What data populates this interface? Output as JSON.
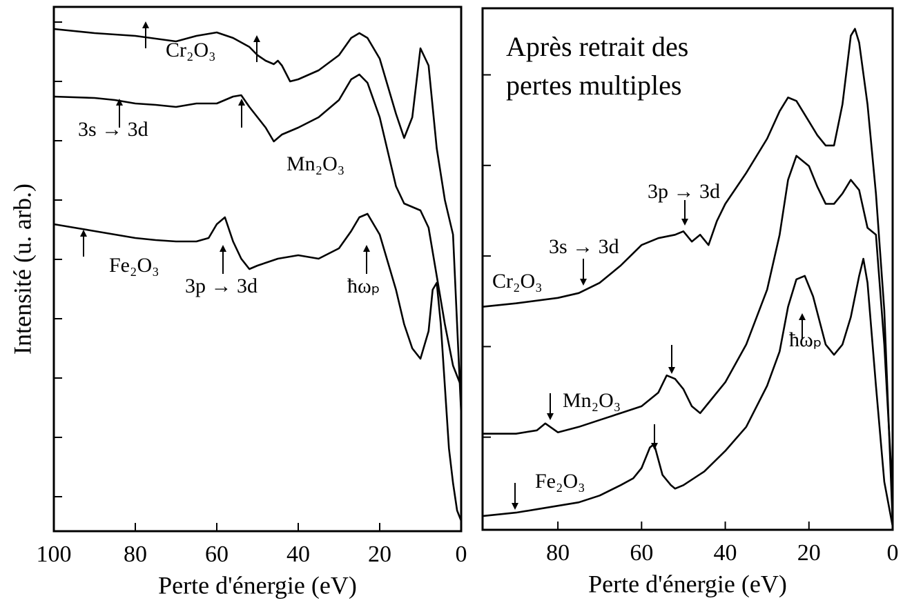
{
  "chart_data": [
    {
      "type": "line",
      "xlabel": "Perte d'énergie (eV)",
      "ylabel": "Intensité (u. arb.)",
      "xlim": [
        100,
        0
      ],
      "xticks": [
        100,
        80,
        60,
        40,
        20,
        0
      ],
      "ylim": [
        0,
        76
      ],
      "yticks": [
        5,
        13.6,
        22.2,
        30.8,
        39.4,
        48,
        56.6,
        65.2,
        73.8
      ],
      "annotations": [
        "3s → 3d",
        "3p → 3d",
        "ħωₚ"
      ],
      "series": [
        {
          "name": "Cr₂O₃",
          "color": "#000000",
          "x": [
            100,
            90,
            80,
            70,
            65,
            60,
            56,
            52,
            50,
            48,
            46,
            45,
            44,
            42,
            40,
            35,
            30,
            27,
            25,
            23,
            20,
            18,
            16,
            14,
            12,
            10,
            8,
            6,
            4,
            2,
            0
          ],
          "values": [
            72.8,
            72.2,
            71.8,
            71.0,
            71.8,
            72.3,
            71.5,
            70.2,
            69,
            68.2,
            67.7,
            68.2,
            67.5,
            65.2,
            65.5,
            66.8,
            69,
            71.5,
            72.2,
            71.5,
            68.5,
            64.5,
            60.5,
            57,
            60,
            70,
            67.5,
            55.5,
            48,
            43,
            17
          ]
        },
        {
          "name": "Mn₂O₃",
          "color": "#000000",
          "x": [
            100,
            90,
            85,
            80,
            75,
            70,
            65,
            60,
            56,
            54,
            52,
            50,
            48,
            46,
            44,
            40,
            35,
            30,
            27,
            25,
            23,
            20,
            18,
            16,
            14,
            12,
            10,
            8,
            6,
            4,
            2,
            0
          ],
          "values": [
            63,
            62.8,
            62.5,
            62,
            61.8,
            61.5,
            62,
            62,
            63,
            63.2,
            61.5,
            60,
            58.5,
            56.5,
            57.5,
            58.5,
            60,
            62.5,
            65.5,
            66.2,
            65,
            60,
            55,
            50,
            47.5,
            47,
            46.5,
            44,
            37,
            30,
            24,
            21
          ]
        },
        {
          "name": "Fe₂O₃",
          "color": "#000000",
          "x": [
            100,
            95,
            90,
            85,
            80,
            75,
            70,
            65,
            62,
            60,
            58,
            56,
            54,
            52,
            50,
            45,
            40,
            35,
            30,
            27,
            25,
            23,
            20,
            18,
            16,
            14,
            12,
            10,
            8,
            7,
            6,
            5,
            4,
            3,
            2,
            1,
            0
          ],
          "values": [
            44.5,
            44,
            43.5,
            43,
            42.5,
            42.2,
            42,
            42,
            42.5,
            44.5,
            45.5,
            42,
            39.5,
            38,
            38.5,
            39.5,
            40,
            39.5,
            41,
            43.5,
            45.5,
            46,
            43,
            39,
            35,
            30,
            26.5,
            25,
            29,
            35,
            36,
            30,
            21,
            12,
            7,
            3,
            1.5
          ]
        }
      ]
    },
    {
      "type": "line",
      "xlabel": "Perte d'énergie (eV)",
      "xlim": [
        98,
        0
      ],
      "xticks": [
        80,
        60,
        40,
        20,
        0
      ],
      "ylim": [
        0,
        76
      ],
      "yticks": [
        13.5,
        26.7,
        39.9,
        53.1,
        66.3
      ],
      "annotations": [
        "Après retrait des",
        "pertes multiples",
        "3p → 3d",
        "3s → 3d",
        "ħωₚ"
      ],
      "series": [
        {
          "name": "Cr₂O₃",
          "color": "#000000",
          "x": [
            98,
            90,
            80,
            75,
            70,
            65,
            60,
            56,
            52,
            50,
            48,
            46,
            44,
            42,
            40,
            35,
            30,
            27,
            25,
            23,
            20,
            18,
            16,
            14,
            12,
            10,
            9,
            8,
            6,
            4,
            2,
            0
          ],
          "values": [
            32.5,
            33,
            33.8,
            34.5,
            36,
            38.5,
            41.5,
            42.5,
            43,
            43.5,
            42,
            43,
            41.5,
            45,
            47.5,
            52,
            57,
            61,
            63,
            62.5,
            59.5,
            57.5,
            56,
            56,
            62,
            72,
            73,
            71,
            62,
            49,
            32,
            1
          ]
        },
        {
          "name": "Mn₂O₃",
          "color": "#000000",
          "x": [
            98,
            90,
            85,
            83,
            80,
            75,
            70,
            65,
            60,
            56,
            54,
            52,
            50,
            48,
            46,
            44,
            40,
            35,
            30,
            27,
            25,
            23,
            20,
            18,
            16,
            14,
            12,
            10,
            8,
            6,
            4,
            2,
            0
          ],
          "values": [
            14,
            14,
            14.5,
            15.5,
            14.2,
            15,
            16,
            17,
            18,
            20,
            22.5,
            22,
            20.5,
            18,
            17,
            18.5,
            21.5,
            27,
            35,
            43,
            51,
            54.5,
            53,
            50,
            47.5,
            47.5,
            49,
            51,
            49.5,
            44,
            43,
            27,
            5
          ]
        },
        {
          "name": "Fe₂O₃",
          "color": "#000000",
          "x": [
            98,
            90,
            85,
            80,
            75,
            70,
            65,
            62,
            60,
            58,
            57,
            55,
            53,
            52,
            50,
            45,
            40,
            35,
            30,
            27,
            25,
            23,
            21,
            19,
            16,
            14,
            12,
            10,
            8,
            7,
            6,
            4,
            2,
            0
          ],
          "values": [
            2,
            2.5,
            3,
            3.5,
            4,
            5,
            6.5,
            7.5,
            9,
            12,
            12.5,
            8,
            6.5,
            6,
            6.5,
            8.5,
            11.5,
            15,
            21,
            26,
            32.5,
            36.5,
            37,
            34,
            27,
            25.5,
            27,
            31,
            37,
            39.5,
            36,
            21,
            7,
            0.5
          ]
        }
      ]
    }
  ]
}
